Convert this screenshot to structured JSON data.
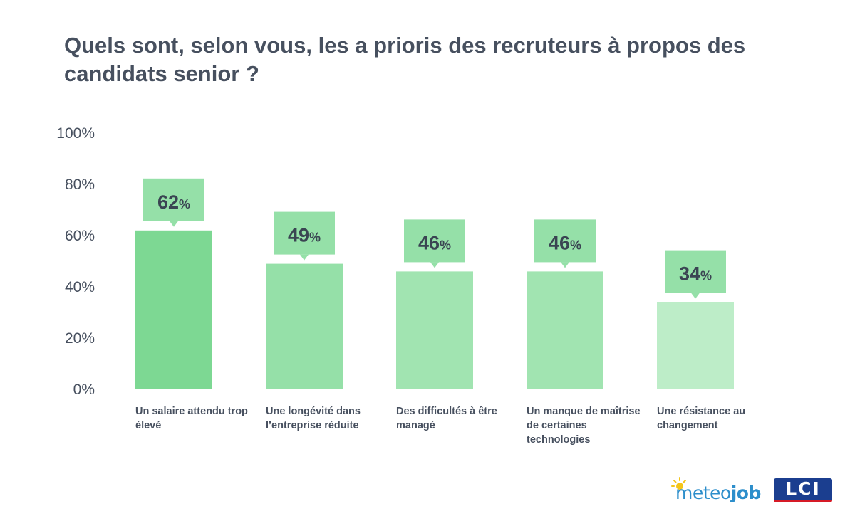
{
  "title": "Quels sont, selon vous, les a prioris des recruteurs à propos des candidats senior ?",
  "chart_data": {
    "type": "bar",
    "categories": [
      "Un salaire attendu trop élevé",
      "Une longévité dans l’entreprise réduite",
      "Des difficultés à être managé",
      "Un manque de maîtrise de certaines technologies",
      "Une résistance au changement"
    ],
    "values": [
      62,
      49,
      46,
      46,
      34
    ],
    "data_labels": [
      "62",
      "49",
      "46",
      "46",
      "34"
    ],
    "value_unit": "%",
    "ylim": [
      0,
      100
    ],
    "yticks": [
      0,
      20,
      40,
      60,
      80,
      100
    ],
    "ytick_labels": [
      "0%",
      "20%",
      "40%",
      "60%",
      "80%",
      "100%"
    ],
    "bar_colors": [
      "#7dd893",
      "#95e0a8",
      "#a1e4b1",
      "#a1e4b1",
      "#bdedc8"
    ],
    "label_box_color": "#95e0a8",
    "label_text_color": "#3a4452",
    "xlabel": "",
    "ylabel": "",
    "grid": false
  },
  "logos": {
    "meteojob": {
      "part1": "meteo",
      "part2": "job",
      "color": "#2c8ecb"
    },
    "lci": {
      "text": "LCI"
    }
  }
}
